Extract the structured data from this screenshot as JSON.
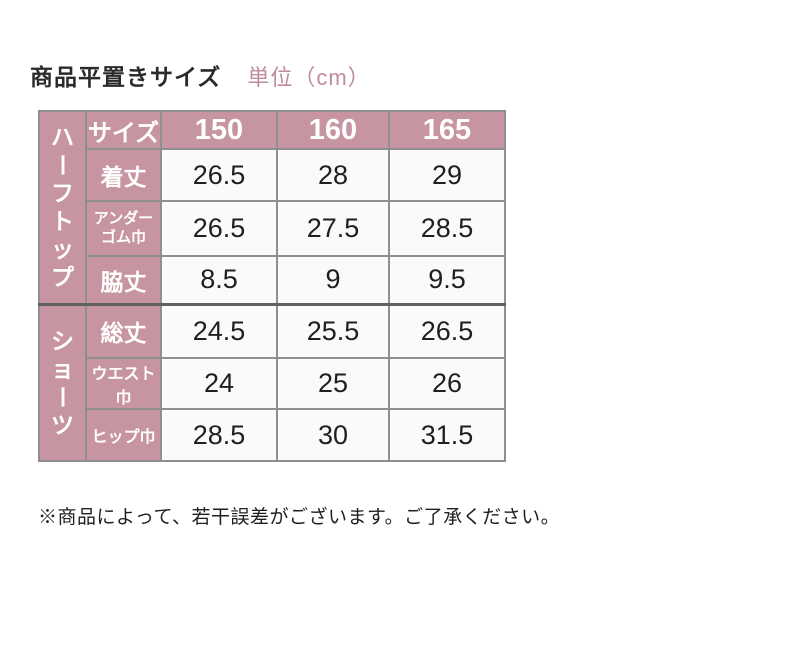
{
  "page": {
    "title": "商品平置きサイズ",
    "unit_label": "単位（cm）",
    "note": "※商品によって、若干誤差がございます。ご了承ください。"
  },
  "colors": {
    "header_pink": "#c795a2",
    "unit_text_pink": "#c08d9b",
    "border_gray": "#8f8f8f",
    "group_divider_gray": "#606060",
    "data_cell_bg": "#fbfafa",
    "text_dark": "#1f1f1f",
    "header_text_white": "#ffffff"
  },
  "table": {
    "header": {
      "label": "サイズ",
      "sizes": [
        "150",
        "160",
        "165"
      ]
    },
    "groups": [
      {
        "label": "ハーフトップ",
        "rows": [
          {
            "label": "着丈",
            "values": [
              "26.5",
              "28",
              "29"
            ]
          },
          {
            "label": "アンダー\nゴム巾",
            "values": [
              "26.5",
              "27.5",
              "28.5"
            ]
          },
          {
            "label": "脇丈",
            "values": [
              "8.5",
              "9",
              "9.5"
            ]
          }
        ]
      },
      {
        "label": "ショーツ",
        "rows": [
          {
            "label": "総丈",
            "values": [
              "24.5",
              "25.5",
              "26.5"
            ]
          },
          {
            "label": "ウエスト巾",
            "values": [
              "24",
              "25",
              "26"
            ]
          },
          {
            "label": "ヒップ巾",
            "values": [
              "28.5",
              "30",
              "31.5"
            ]
          }
        ]
      }
    ]
  },
  "chart_data": {
    "type": "table",
    "title": "商品平置きサイズ",
    "unit": "cm",
    "columns": [
      "サイズ",
      "150",
      "160",
      "165"
    ],
    "row_groups": [
      {
        "group": "ハーフトップ",
        "rows": [
          {
            "label": "着丈",
            "values": [
              26.5,
              28,
              29
            ]
          },
          {
            "label": "アンダーゴム巾",
            "values": [
              26.5,
              27.5,
              28.5
            ]
          },
          {
            "label": "脇丈",
            "values": [
              8.5,
              9,
              9.5
            ]
          }
        ]
      },
      {
        "group": "ショーツ",
        "rows": [
          {
            "label": "総丈",
            "values": [
              24.5,
              25.5,
              26.5
            ]
          },
          {
            "label": "ウエスト巾",
            "values": [
              24,
              25,
              26
            ]
          },
          {
            "label": "ヒップ巾",
            "values": [
              28.5,
              30,
              31.5
            ]
          }
        ]
      }
    ],
    "note": "※商品によって、若干誤差がございます。ご了承ください。"
  }
}
